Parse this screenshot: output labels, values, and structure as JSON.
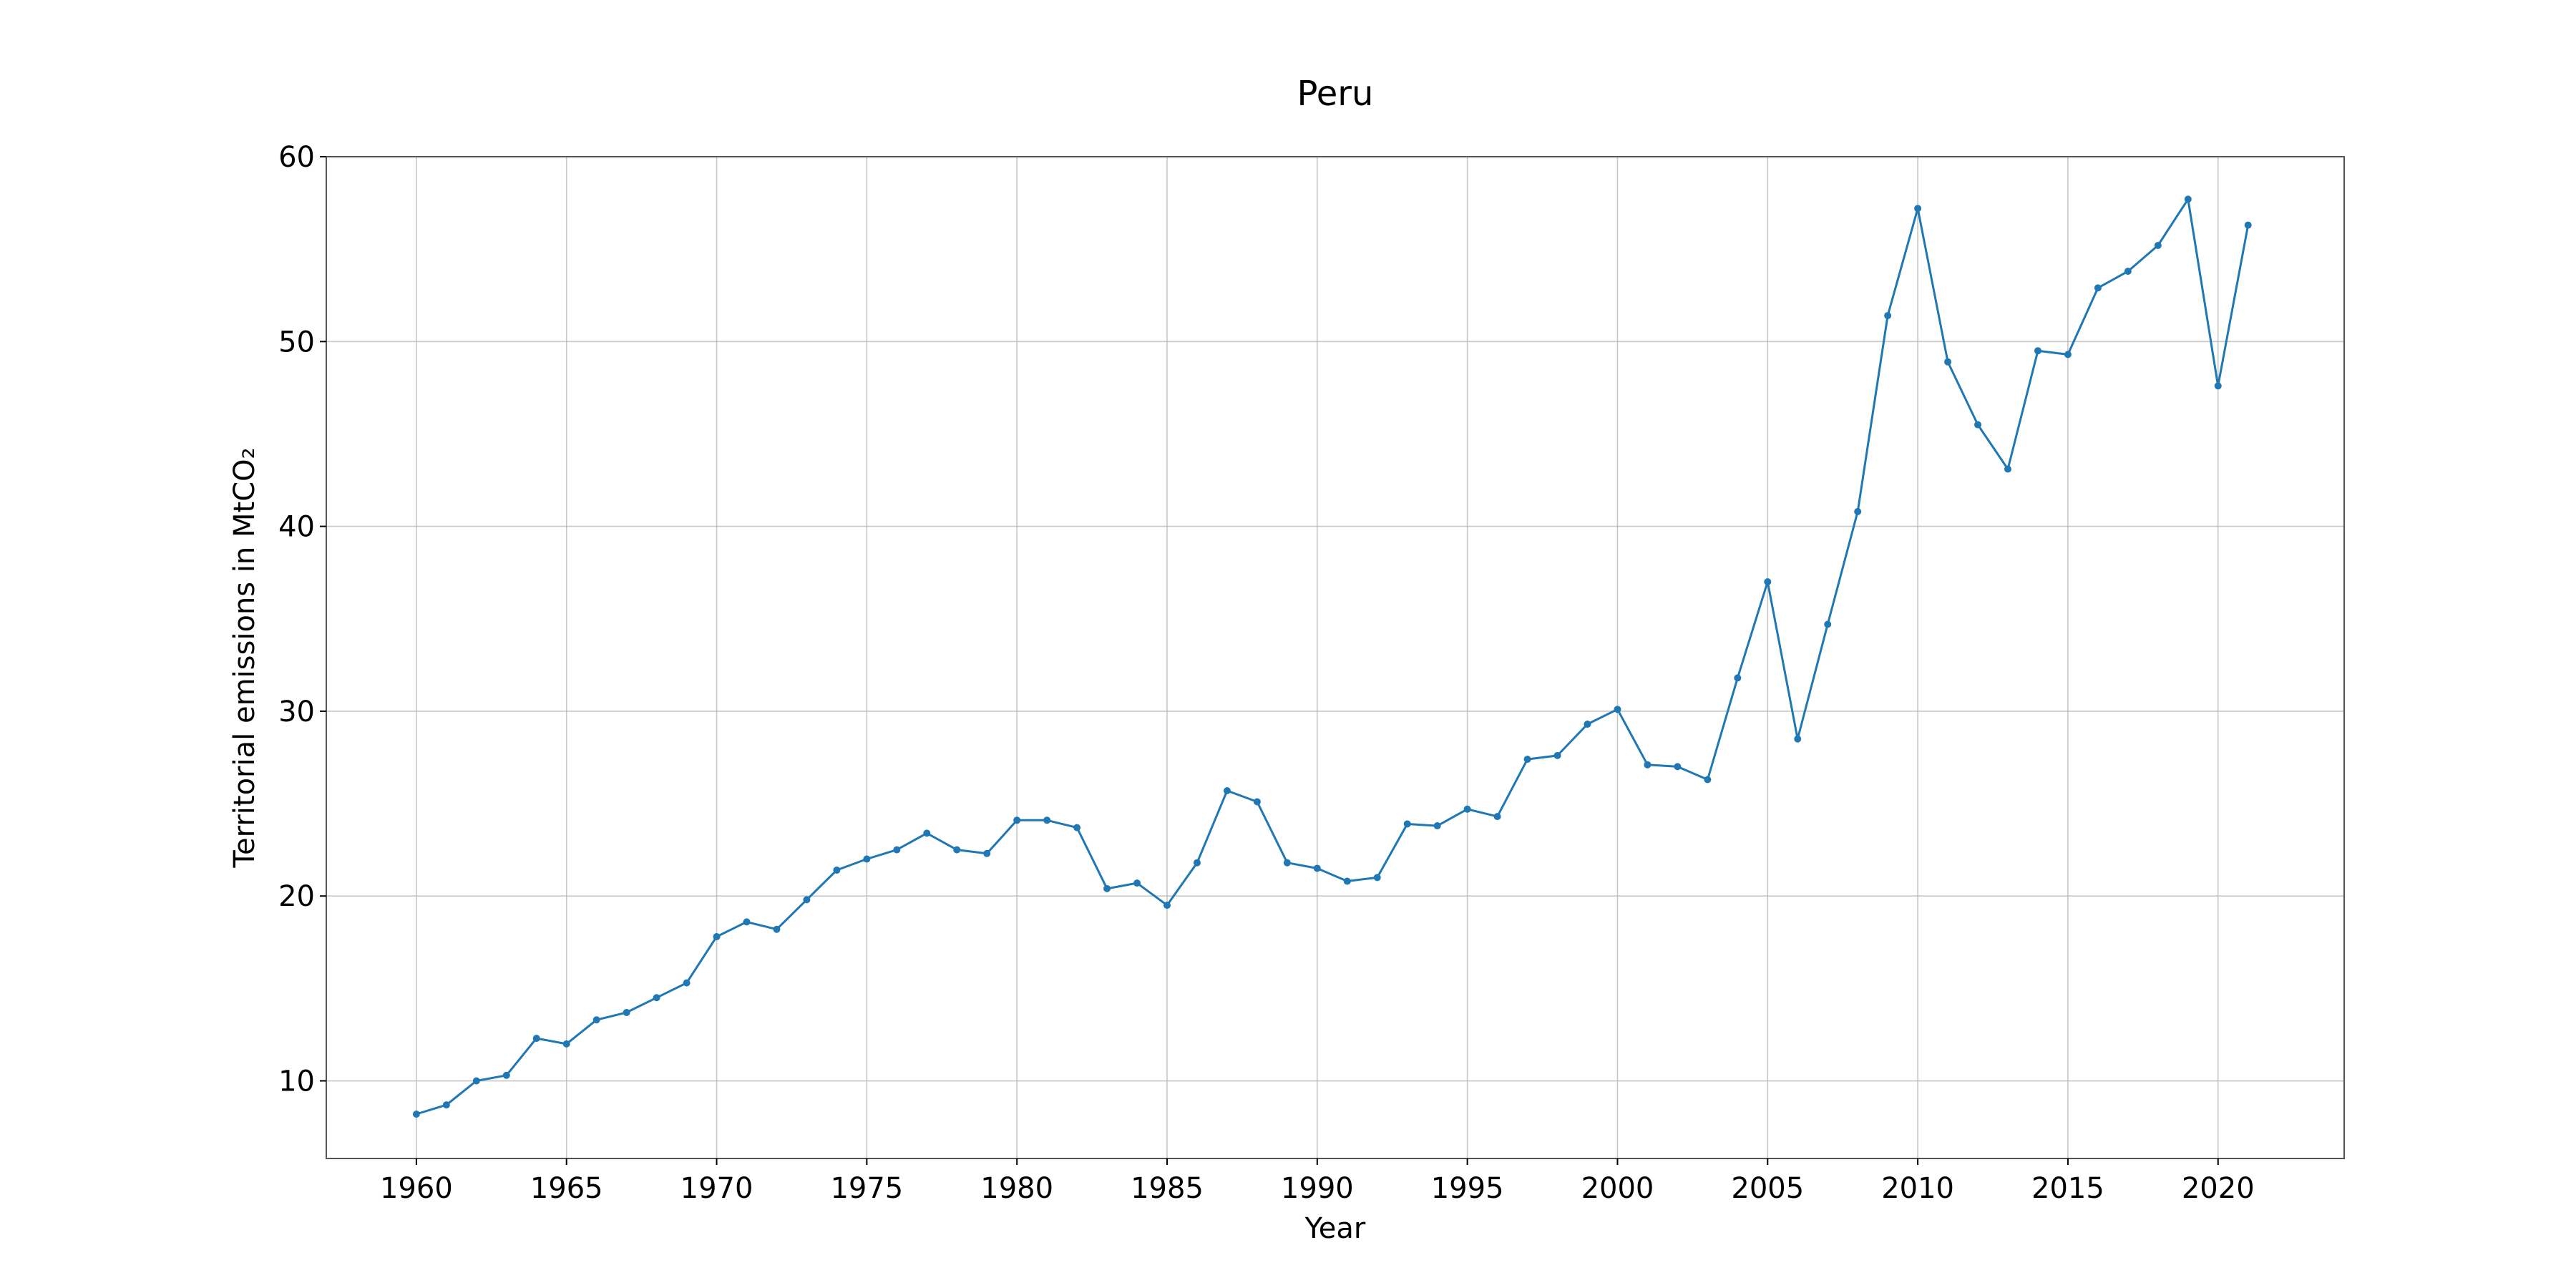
{
  "chart_data": {
    "type": "line",
    "title": "Peru",
    "xlabel": "Year",
    "ylabel": "Territorial emissions in MtCO₂",
    "xlim": [
      1957,
      2024.2
    ],
    "ylim": [
      5.8,
      60
    ],
    "xticks": [
      1960,
      1965,
      1970,
      1975,
      1980,
      1985,
      1990,
      1995,
      2000,
      2005,
      2010,
      2015,
      2020
    ],
    "yticks": [
      10,
      20,
      30,
      40,
      50,
      60
    ],
    "grid": true,
    "color": "#1f77b4",
    "series": [
      {
        "x": [
          1960,
          1961,
          1962,
          1963,
          1964,
          1965,
          1966,
          1967,
          1968,
          1969,
          1970,
          1971,
          1972,
          1973,
          1974,
          1975,
          1976,
          1977,
          1978,
          1979,
          1980,
          1981,
          1982,
          1983,
          1984,
          1985,
          1986,
          1987,
          1988,
          1989,
          1990,
          1991,
          1992,
          1993,
          1994,
          1995,
          1996,
          1997,
          1998,
          1999,
          2000,
          2001,
          2002,
          2003,
          2004,
          2005,
          2006,
          2007,
          2008,
          2009,
          2010,
          2011,
          2012,
          2013,
          2014,
          2015,
          2016,
          2017,
          2018,
          2019,
          2020,
          2021
        ],
        "values": [
          8.2,
          8.7,
          10.0,
          10.3,
          12.3,
          12.0,
          13.3,
          13.7,
          14.5,
          15.3,
          17.8,
          18.6,
          18.2,
          19.8,
          21.4,
          22.0,
          22.5,
          23.4,
          22.5,
          22.3,
          24.1,
          24.1,
          23.7,
          20.4,
          20.7,
          19.5,
          21.8,
          25.7,
          25.1,
          21.8,
          21.5,
          20.8,
          21.0,
          23.9,
          23.8,
          24.7,
          24.3,
          27.4,
          27.6,
          29.3,
          30.1,
          27.1,
          27.0,
          26.3,
          31.8,
          37.0,
          28.5,
          34.7,
          40.8,
          51.4,
          57.2,
          48.9,
          45.5,
          43.1,
          49.5,
          49.3,
          52.9,
          53.8,
          55.2,
          57.7,
          47.6,
          56.3
        ]
      }
    ]
  }
}
